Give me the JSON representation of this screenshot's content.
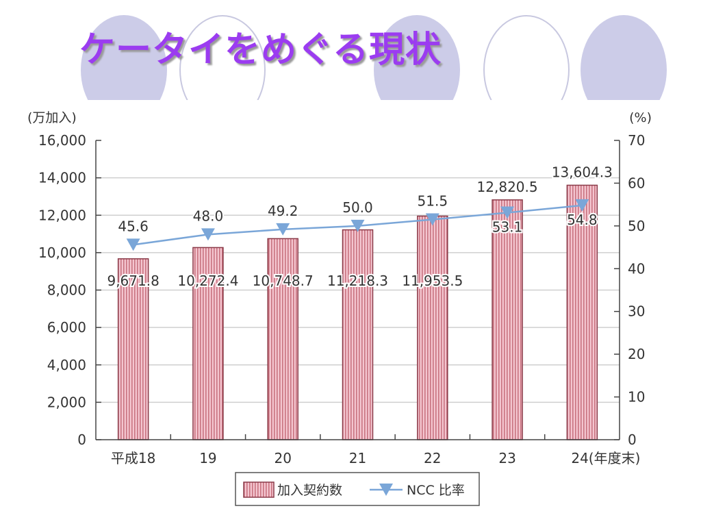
{
  "slide": {
    "title": "ケータイをめぐる現状"
  },
  "chart_data": {
    "type": "bar",
    "categories": [
      "平成18",
      "19",
      "20",
      "21",
      "22",
      "23",
      "24(年度末)"
    ],
    "y_left": {
      "label": "(万加入)",
      "min": 0,
      "max": 16000,
      "step": 2000,
      "ticks": [
        "0",
        "2,000",
        "4,000",
        "6,000",
        "8,000",
        "10,000",
        "12,000",
        "14,000",
        "16,000"
      ]
    },
    "y_right": {
      "label": "(%)",
      "min": 0,
      "max": 70,
      "step": 10,
      "ticks": [
        "0",
        "10",
        "20",
        "30",
        "40",
        "50",
        "60",
        "70"
      ]
    },
    "series": [
      {
        "name": "加入契約数",
        "type": "bar",
        "axis": "left",
        "color": "#e6a0ae",
        "values": [
          9671.8,
          10272.4,
          10748.7,
          11218.3,
          11953.5,
          12820.5,
          13604.3
        ],
        "labels": [
          "9,671.8",
          "10,272.4",
          "10,748.7",
          "11,218.3",
          "11,953.5",
          "12,820.5",
          "13,604.3"
        ]
      },
      {
        "name": "NCC 比率",
        "type": "line",
        "axis": "right",
        "color": "#7aa6d8",
        "values": [
          45.6,
          48.0,
          49.2,
          50.0,
          51.5,
          53.1,
          54.8
        ],
        "labels": [
          "45.6",
          "48.0",
          "49.2",
          "50.0",
          "51.5",
          "53.1",
          "54.8"
        ]
      }
    ],
    "grid": true,
    "legend": "bottom"
  }
}
